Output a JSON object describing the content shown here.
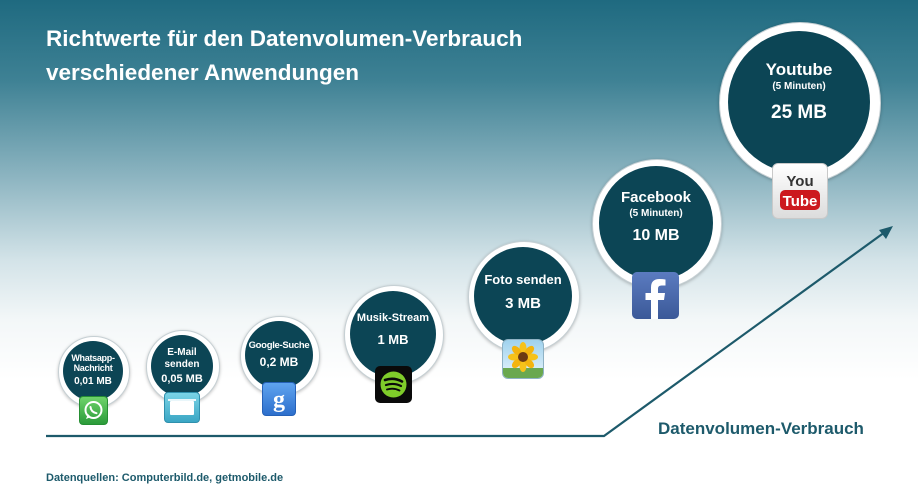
{
  "title": {
    "line1": "Richtwerte für den Datenvolumen-Verbrauch",
    "line2": "verschiedener Anwendungen"
  },
  "axis_label": "Datenvolumen-Verbrauch",
  "source": "Datenquellen: Computerbild.de, getmobile.de",
  "apps": [
    {
      "name_line1": "Whatsapp-",
      "name_line2": "Nachricht",
      "duration": "",
      "value": "0,01 MB",
      "icon": "whatsapp-icon"
    },
    {
      "name_line1": "E-Mail",
      "name_line2": "senden",
      "duration": "",
      "value": "0,05 MB",
      "icon": "email-icon"
    },
    {
      "name_line1": "Google-Suche",
      "name_line2": "",
      "duration": "",
      "value": "0,2 MB",
      "icon": "google-icon"
    },
    {
      "name_line1": "Musik-Stream",
      "name_line2": "",
      "duration": "",
      "value": "1 MB",
      "icon": "spotify-icon"
    },
    {
      "name_line1": "Foto senden",
      "name_line2": "",
      "duration": "",
      "value": "3 MB",
      "icon": "photo-sunflower-icon"
    },
    {
      "name_line1": "Facebook",
      "name_line2": "",
      "duration": "(5 Minuten)",
      "value": "10 MB",
      "icon": "facebook-icon"
    },
    {
      "name_line1": "Youtube",
      "name_line2": "",
      "duration": "(5 Minuten)",
      "value": "25 MB",
      "icon": "youtube-icon"
    }
  ],
  "colors": {
    "bubble": "#0c4555",
    "accent": "#1d5a6b",
    "whatsapp": "#3bb54a",
    "facebook": "#3b5998",
    "youtube": "#cc181e"
  }
}
